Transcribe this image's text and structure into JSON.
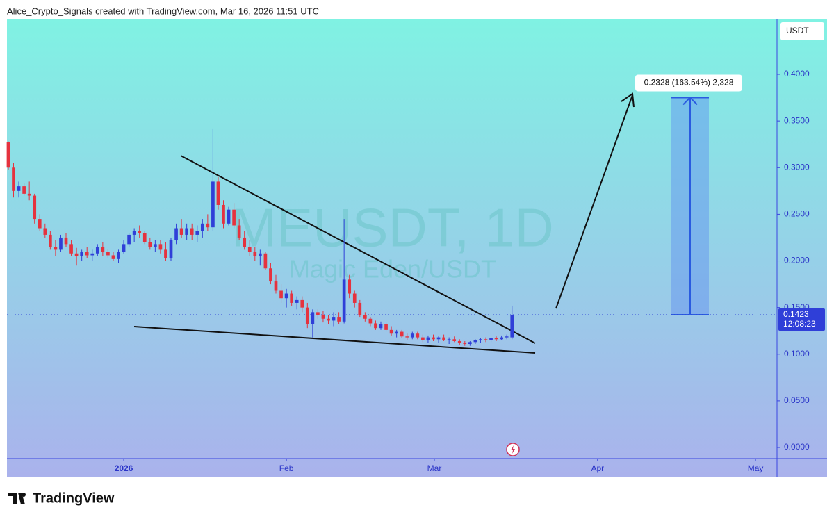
{
  "header": "Alice_Crypto_Signals created with TradingView.com, Mar 16, 2026 11:51 UTC",
  "footer": "TradingView",
  "chart_data": {
    "type": "candlestick",
    "watermark": "MEUSDT, 1D",
    "watermark_subtitle": "Magic Eden/USDT",
    "currency": "USDT",
    "countdown": "12:08:23",
    "up_color": "#2f3fd8",
    "down_color": "#e5323e",
    "categories": [
      null,
      null,
      null,
      null,
      null,
      null,
      null,
      null,
      null,
      null,
      null,
      null,
      null,
      null,
      null,
      null,
      null,
      null,
      null,
      null,
      null,
      null,
      null,
      null,
      null,
      null,
      null,
      null,
      null,
      null,
      null,
      null,
      null,
      null,
      null,
      null,
      null,
      null,
      null,
      null,
      null,
      null,
      null,
      null,
      null,
      null,
      null,
      null,
      null,
      null,
      null,
      null,
      null,
      null,
      null,
      null,
      null,
      null,
      null,
      null,
      null,
      null,
      null,
      null,
      null,
      null,
      null,
      null,
      null,
      null,
      null,
      null,
      null,
      null,
      null,
      null,
      null,
      null,
      null,
      null,
      null,
      null,
      null,
      null,
      null,
      null,
      null,
      null,
      null,
      null,
      null,
      null,
      null,
      null,
      null,
      null,
      null
    ],
    "open": [
      0.327,
      0.3,
      0.275,
      0.28,
      0.272,
      0.27,
      0.245,
      0.235,
      0.228,
      0.215,
      0.212,
      0.225,
      0.218,
      0.208,
      0.205,
      0.21,
      0.206,
      0.208,
      0.215,
      0.21,
      0.206,
      0.202,
      0.21,
      0.218,
      0.228,
      0.232,
      0.23,
      0.22,
      0.215,
      0.218,
      0.212,
      0.203,
      0.222,
      0.235,
      0.228,
      0.235,
      0.228,
      0.232,
      0.24,
      0.236,
      0.285,
      0.26,
      0.24,
      0.255,
      0.238,
      0.225,
      0.215,
      0.21,
      0.205,
      0.208,
      0.192,
      0.178,
      0.168,
      0.16,
      0.165,
      0.155,
      0.158,
      0.15,
      0.132,
      0.145,
      0.142,
      0.138,
      0.136,
      0.14,
      0.135,
      0.18,
      0.165,
      0.155,
      0.142,
      0.138,
      0.133,
      0.128,
      0.132,
      0.126,
      0.122,
      0.124,
      0.119,
      0.118,
      0.122,
      0.118,
      0.115,
      0.118,
      0.116,
      0.118,
      0.115,
      0.116,
      0.114,
      0.112,
      0.111,
      0.113,
      0.115,
      0.116,
      0.115,
      0.117,
      0.116,
      0.118,
      0.118
    ],
    "high": [
      0.328,
      0.305,
      0.285,
      0.283,
      0.285,
      0.272,
      0.25,
      0.24,
      0.232,
      0.222,
      0.228,
      0.23,
      0.222,
      0.214,
      0.212,
      0.215,
      0.212,
      0.218,
      0.22,
      0.213,
      0.21,
      0.212,
      0.222,
      0.23,
      0.235,
      0.238,
      0.232,
      0.225,
      0.222,
      0.222,
      0.22,
      0.225,
      0.24,
      0.245,
      0.24,
      0.24,
      0.238,
      0.245,
      0.25,
      0.342,
      0.29,
      0.265,
      0.258,
      0.262,
      0.245,
      0.232,
      0.222,
      0.215,
      0.212,
      0.21,
      0.198,
      0.185,
      0.175,
      0.17,
      0.168,
      0.162,
      0.162,
      0.155,
      0.148,
      0.148,
      0.146,
      0.142,
      0.145,
      0.145,
      0.245,
      0.185,
      0.168,
      0.158,
      0.145,
      0.14,
      0.136,
      0.135,
      0.134,
      0.13,
      0.126,
      0.126,
      0.122,
      0.124,
      0.124,
      0.121,
      0.12,
      0.121,
      0.119,
      0.121,
      0.118,
      0.119,
      0.116,
      0.114,
      0.114,
      0.116,
      0.117,
      0.118,
      0.118,
      0.119,
      0.12,
      0.121,
      0.152
    ],
    "low": [
      0.298,
      0.268,
      0.268,
      0.27,
      0.265,
      0.24,
      0.232,
      0.225,
      0.212,
      0.205,
      0.21,
      0.215,
      0.205,
      0.195,
      0.2,
      0.203,
      0.2,
      0.205,
      0.205,
      0.203,
      0.2,
      0.198,
      0.208,
      0.215,
      0.22,
      0.225,
      0.218,
      0.212,
      0.21,
      0.208,
      0.2,
      0.2,
      0.218,
      0.225,
      0.222,
      0.222,
      0.22,
      0.225,
      0.232,
      0.232,
      0.255,
      0.235,
      0.238,
      0.235,
      0.222,
      0.212,
      0.205,
      0.2,
      0.195,
      0.19,
      0.175,
      0.165,
      0.155,
      0.15,
      0.152,
      0.148,
      0.145,
      0.128,
      0.118,
      0.138,
      0.134,
      0.132,
      0.13,
      0.132,
      0.133,
      0.16,
      0.15,
      0.14,
      0.135,
      0.13,
      0.126,
      0.126,
      0.124,
      0.12,
      0.118,
      0.117,
      0.115,
      0.116,
      0.116,
      0.113,
      0.112,
      0.114,
      0.112,
      0.114,
      0.111,
      0.113,
      0.11,
      0.109,
      0.109,
      0.111,
      0.112,
      0.113,
      0.113,
      0.114,
      0.115,
      0.116,
      0.116
    ],
    "close": [
      0.3,
      0.275,
      0.28,
      0.272,
      0.27,
      0.245,
      0.235,
      0.228,
      0.215,
      0.212,
      0.225,
      0.218,
      0.208,
      0.205,
      0.21,
      0.206,
      0.208,
      0.215,
      0.21,
      0.206,
      0.202,
      0.21,
      0.218,
      0.228,
      0.232,
      0.23,
      0.22,
      0.215,
      0.218,
      0.212,
      0.203,
      0.222,
      0.235,
      0.228,
      0.235,
      0.228,
      0.232,
      0.24,
      0.236,
      0.285,
      0.26,
      0.24,
      0.255,
      0.238,
      0.225,
      0.215,
      0.21,
      0.205,
      0.208,
      0.192,
      0.178,
      0.168,
      0.16,
      0.165,
      0.155,
      0.158,
      0.15,
      0.132,
      0.145,
      0.142,
      0.138,
      0.136,
      0.14,
      0.135,
      0.18,
      0.165,
      0.155,
      0.142,
      0.138,
      0.133,
      0.128,
      0.132,
      0.126,
      0.122,
      0.124,
      0.119,
      0.118,
      0.122,
      0.118,
      0.115,
      0.118,
      0.116,
      0.118,
      0.115,
      0.116,
      0.114,
      0.112,
      0.111,
      0.113,
      0.115,
      0.116,
      0.115,
      0.117,
      0.116,
      0.118,
      0.119,
      0.1423
    ],
    "projection": {
      "start": 0.1423,
      "end": 0.3751,
      "label": "0.2328 (163.54%) 2,328"
    },
    "xlim": [
      -0.26,
      146.5
    ],
    "xticks": [
      {
        "value": 22.0,
        "label": "2026"
      },
      {
        "value": 53.0,
        "label": "Feb"
      },
      {
        "value": 81.2,
        "label": "Mar"
      },
      {
        "value": 112.3,
        "label": "Apr"
      },
      {
        "value": 142.4,
        "label": "May"
      }
    ],
    "ylim": [
      -0.0119,
      0.4596
    ],
    "yticks": [
      {
        "value": 0,
        "label": "0.0000"
      },
      {
        "value": 0.05,
        "label": "0.0500"
      },
      {
        "value": 0.1,
        "label": "0.1000"
      },
      {
        "value": 0.15,
        "label": "0.1500"
      },
      {
        "value": 0.2,
        "label": "0.2000"
      },
      {
        "value": 0.25,
        "label": "0.2500"
      },
      {
        "value": 0.3,
        "label": "0.3000"
      },
      {
        "value": 0.35,
        "label": "0.3500"
      },
      {
        "value": 0.4,
        "label": "0.4000"
      }
    ]
  }
}
